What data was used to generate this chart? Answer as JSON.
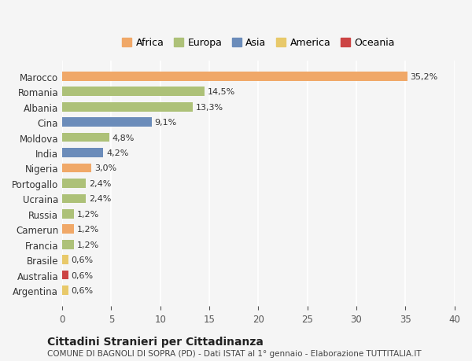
{
  "countries": [
    "Marocco",
    "Romania",
    "Albania",
    "Cina",
    "Moldova",
    "India",
    "Nigeria",
    "Portogallo",
    "Ucraina",
    "Russia",
    "Camerun",
    "Francia",
    "Brasile",
    "Australia",
    "Argentina"
  ],
  "values": [
    35.2,
    14.5,
    13.3,
    9.1,
    4.8,
    4.2,
    3.0,
    2.4,
    2.4,
    1.2,
    1.2,
    1.2,
    0.6,
    0.6,
    0.6
  ],
  "labels": [
    "35,2%",
    "14,5%",
    "13,3%",
    "9,1%",
    "4,8%",
    "4,2%",
    "3,0%",
    "2,4%",
    "2,4%",
    "1,2%",
    "1,2%",
    "1,2%",
    "0,6%",
    "0,6%",
    "0,6%"
  ],
  "colors": [
    "#f0a868",
    "#adc178",
    "#adc178",
    "#6b8cba",
    "#adc178",
    "#6b8cba",
    "#f0a868",
    "#adc178",
    "#adc178",
    "#adc178",
    "#f0a868",
    "#adc178",
    "#e8c96a",
    "#cc4444",
    "#e8c96a"
  ],
  "continents": [
    "Africa",
    "Europa",
    "Asia",
    "America",
    "Oceania"
  ],
  "continent_colors": [
    "#f0a868",
    "#adc178",
    "#6b8cba",
    "#e8c96a",
    "#cc4444"
  ],
  "title": "Cittadini Stranieri per Cittadinanza",
  "subtitle": "COMUNE DI BAGNOLI DI SOPRA (PD) - Dati ISTAT al 1° gennaio - Elaborazione TUTTITALIA.IT",
  "xlim": [
    0,
    40
  ],
  "xticks": [
    0,
    5,
    10,
    15,
    20,
    25,
    30,
    35,
    40
  ],
  "background_color": "#f5f5f5",
  "bar_height": 0.6
}
